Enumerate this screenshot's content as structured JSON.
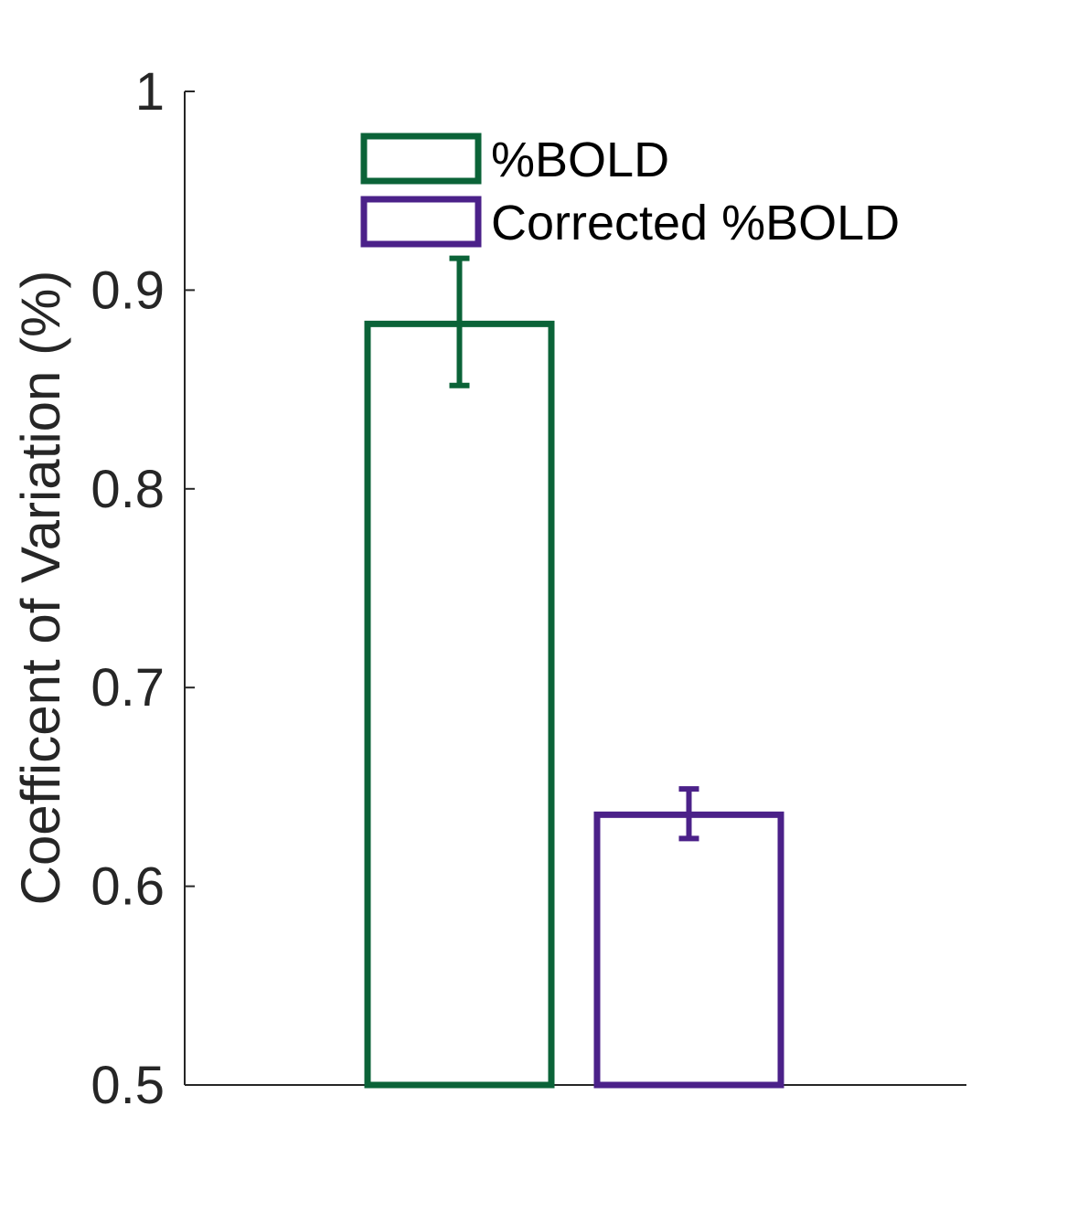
{
  "chart_data": {
    "type": "bar",
    "ylabel": "Coefficent of Variation (%)",
    "xlabel": "",
    "ylim": [
      0.5,
      1.0
    ],
    "yticks": [
      "0.5",
      "0.6",
      "0.7",
      "0.8",
      "0.9",
      "1"
    ],
    "grid": false,
    "legend_position": "top",
    "series": [
      {
        "name": "%BOLD",
        "value": 0.883,
        "error_low": 0.852,
        "error_high": 0.916,
        "color": "#0b6338"
      },
      {
        "name": "Corrected %BOLD",
        "value": 0.636,
        "error_low": 0.624,
        "error_high": 0.649,
        "color": "#4b2189"
      }
    ],
    "axis_color": "#262626"
  }
}
